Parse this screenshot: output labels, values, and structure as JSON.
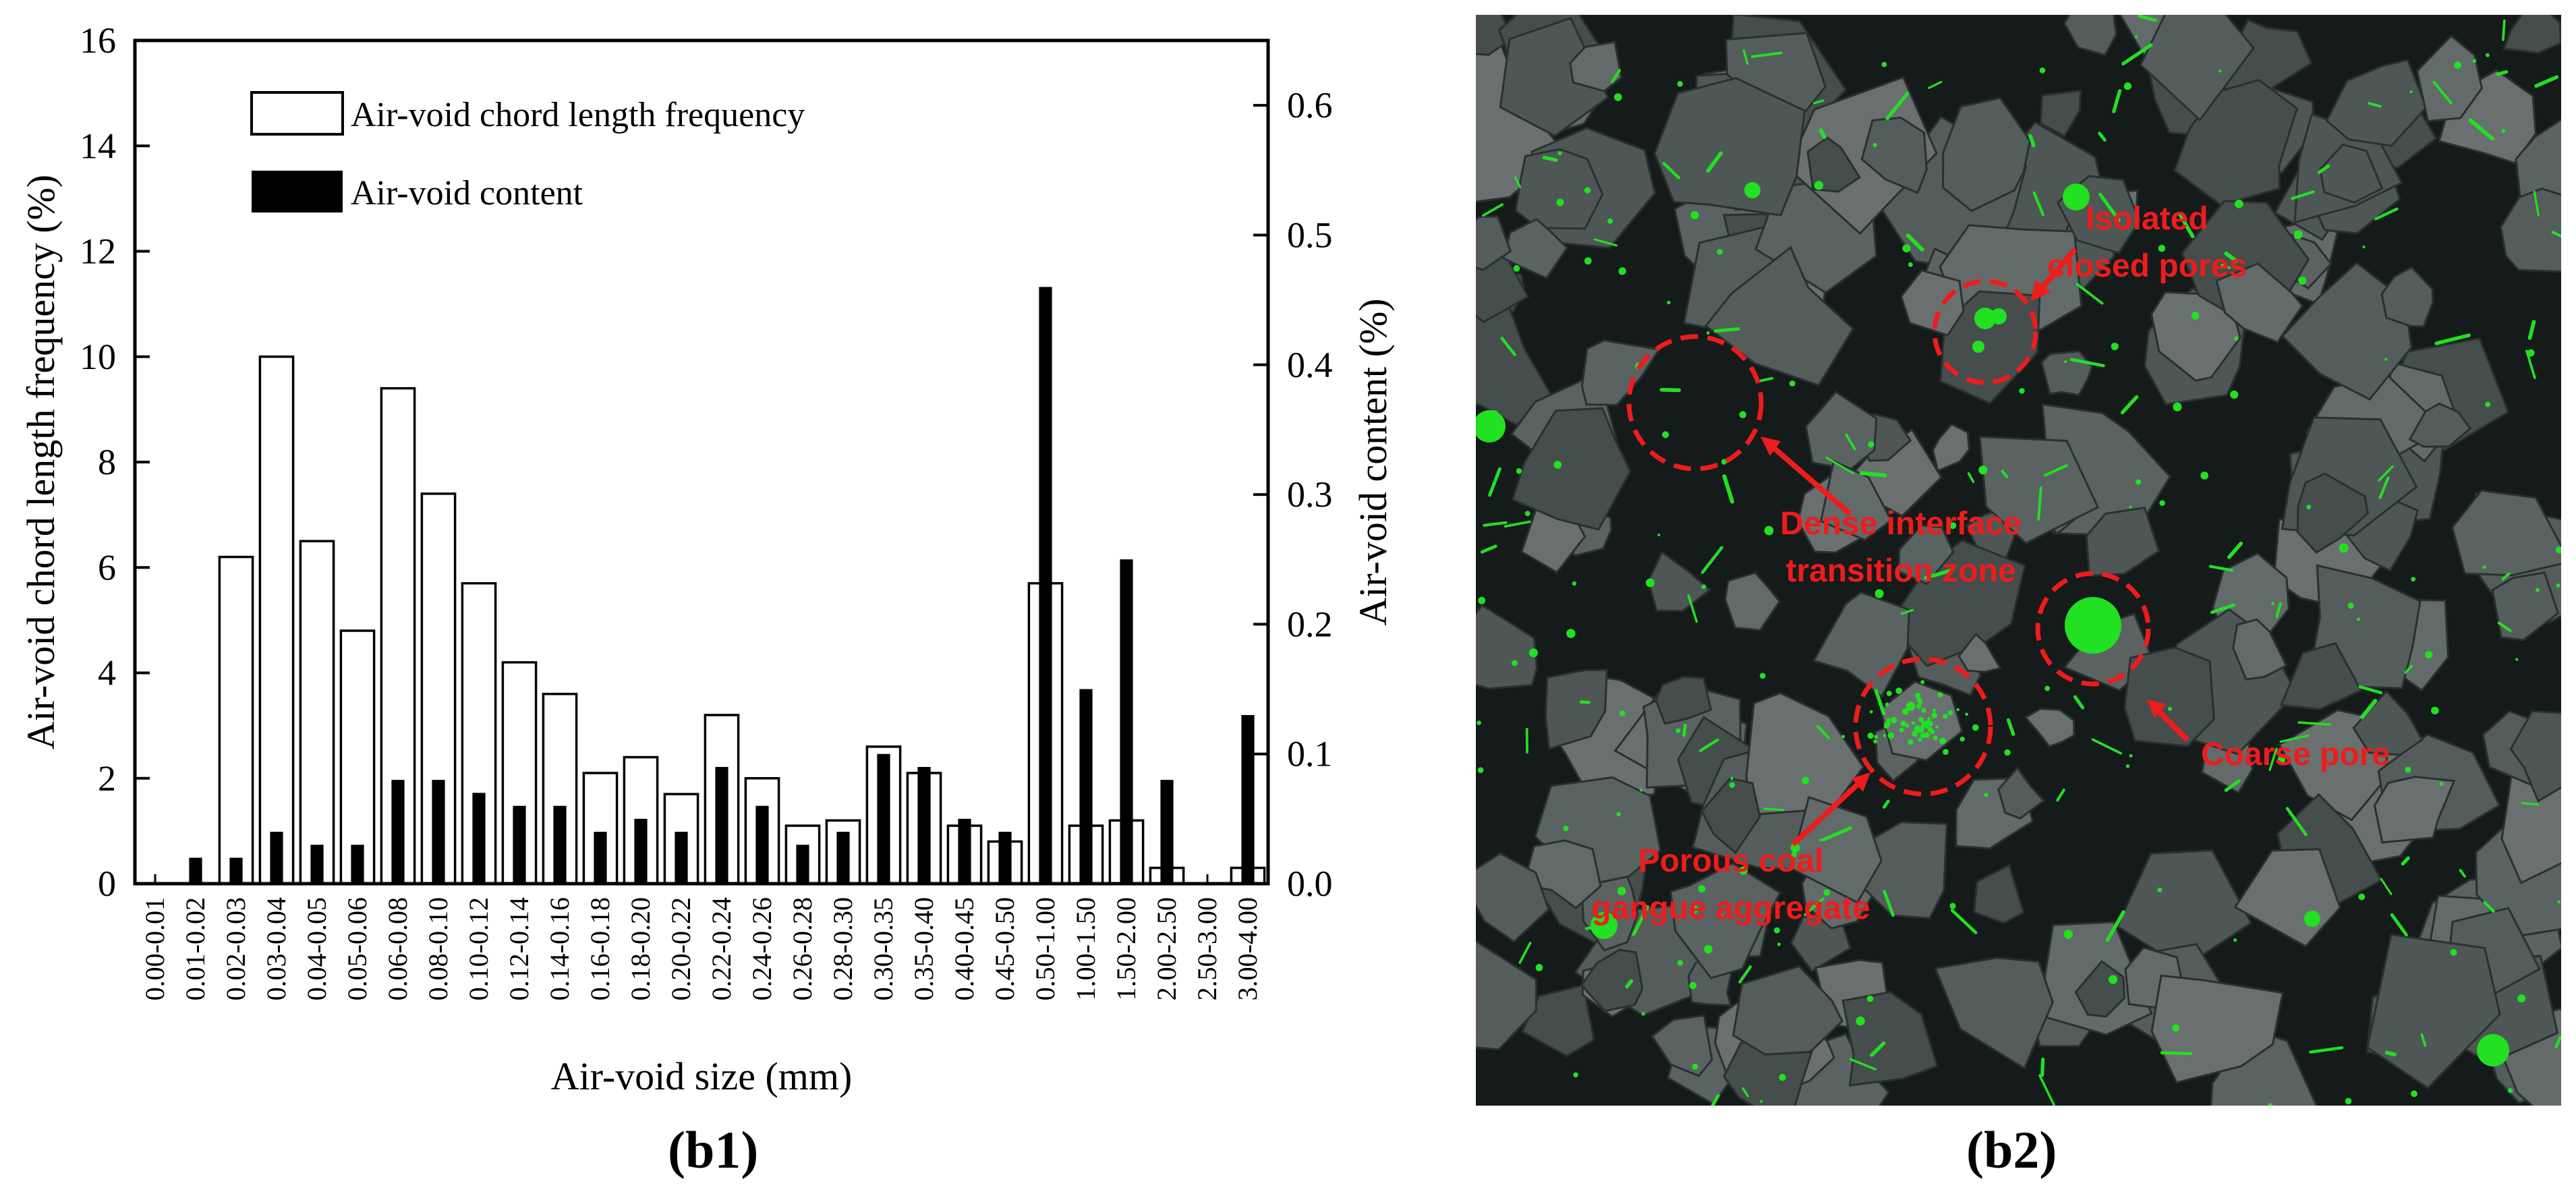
{
  "chart_data": {
    "type": "bar",
    "categories": [
      "0.00-0.01",
      "0.01-0.02",
      "0.02-0.03",
      "0.03-0.04",
      "0.04-0.05",
      "0.05-0.06",
      "0.06-0.08",
      "0.08-0.10",
      "0.10-0.12",
      "0.12-0.14",
      "0.14-0.16",
      "0.16-0.18",
      "0.18-0.20",
      "0.20-0.22",
      "0.22-0.24",
      "0.24-0.26",
      "0.26-0.28",
      "0.28-0.30",
      "0.30-0.35",
      "0.35-0.40",
      "0.40-0.45",
      "0.45-0.50",
      "0.50-1.00",
      "1.00-1.50",
      "1.50-2.00",
      "2.00-2.50",
      "2.50-3.00",
      "3.00-4.00"
    ],
    "series": [
      {
        "name": "Air-void chord length frequency",
        "axis": "left",
        "style": "open",
        "values": [
          0,
          0,
          6.2,
          10.0,
          6.5,
          4.8,
          9.4,
          7.4,
          5.7,
          4.2,
          3.6,
          2.1,
          2.4,
          1.7,
          3.2,
          2.0,
          1.1,
          1.2,
          2.6,
          2.1,
          1.1,
          0.8,
          5.7,
          1.1,
          1.2,
          0.3,
          0,
          0.3
        ]
      },
      {
        "name": "Air-void content",
        "axis": "right",
        "style": "filled",
        "values": [
          0,
          0.02,
          0.02,
          0.04,
          0.03,
          0.03,
          0.08,
          0.08,
          0.07,
          0.06,
          0.06,
          0.04,
          0.05,
          0.04,
          0.09,
          0.06,
          0.03,
          0.04,
          0.1,
          0.09,
          0.05,
          0.04,
          0.46,
          0.15,
          0.25,
          0.08,
          0,
          0.13
        ]
      }
    ],
    "xlabel": "Air-void size (mm)",
    "ylabel": "Air-void chord length frequency (%)",
    "y2label": "Air-void content (%)",
    "ylim": [
      0,
      16
    ],
    "y2lim": [
      0,
      0.65
    ],
    "yticks": [
      "0",
      "2",
      "4",
      "6",
      "8",
      "10",
      "12",
      "14",
      "16"
    ],
    "y2ticks": [
      "0.0",
      "0.1",
      "0.2",
      "0.3",
      "0.4",
      "0.5",
      "0.6"
    ],
    "legend_position": "top-left",
    "grid": false
  },
  "captions": {
    "left": "(b1)",
    "right": "(b2)"
  },
  "annotations": {
    "isolated": [
      "Isolated",
      "closed pores"
    ],
    "dense": [
      "Dense interface",
      "transition zone"
    ],
    "coarse": [
      "Coarse pore"
    ],
    "porous": [
      "Porous coal",
      "gangue aggregate"
    ]
  },
  "colors": {
    "annotation": "#ee1c1c",
    "pore": "#22e022",
    "matrix": "#151a1a",
    "aggregate": "#5b6262"
  }
}
